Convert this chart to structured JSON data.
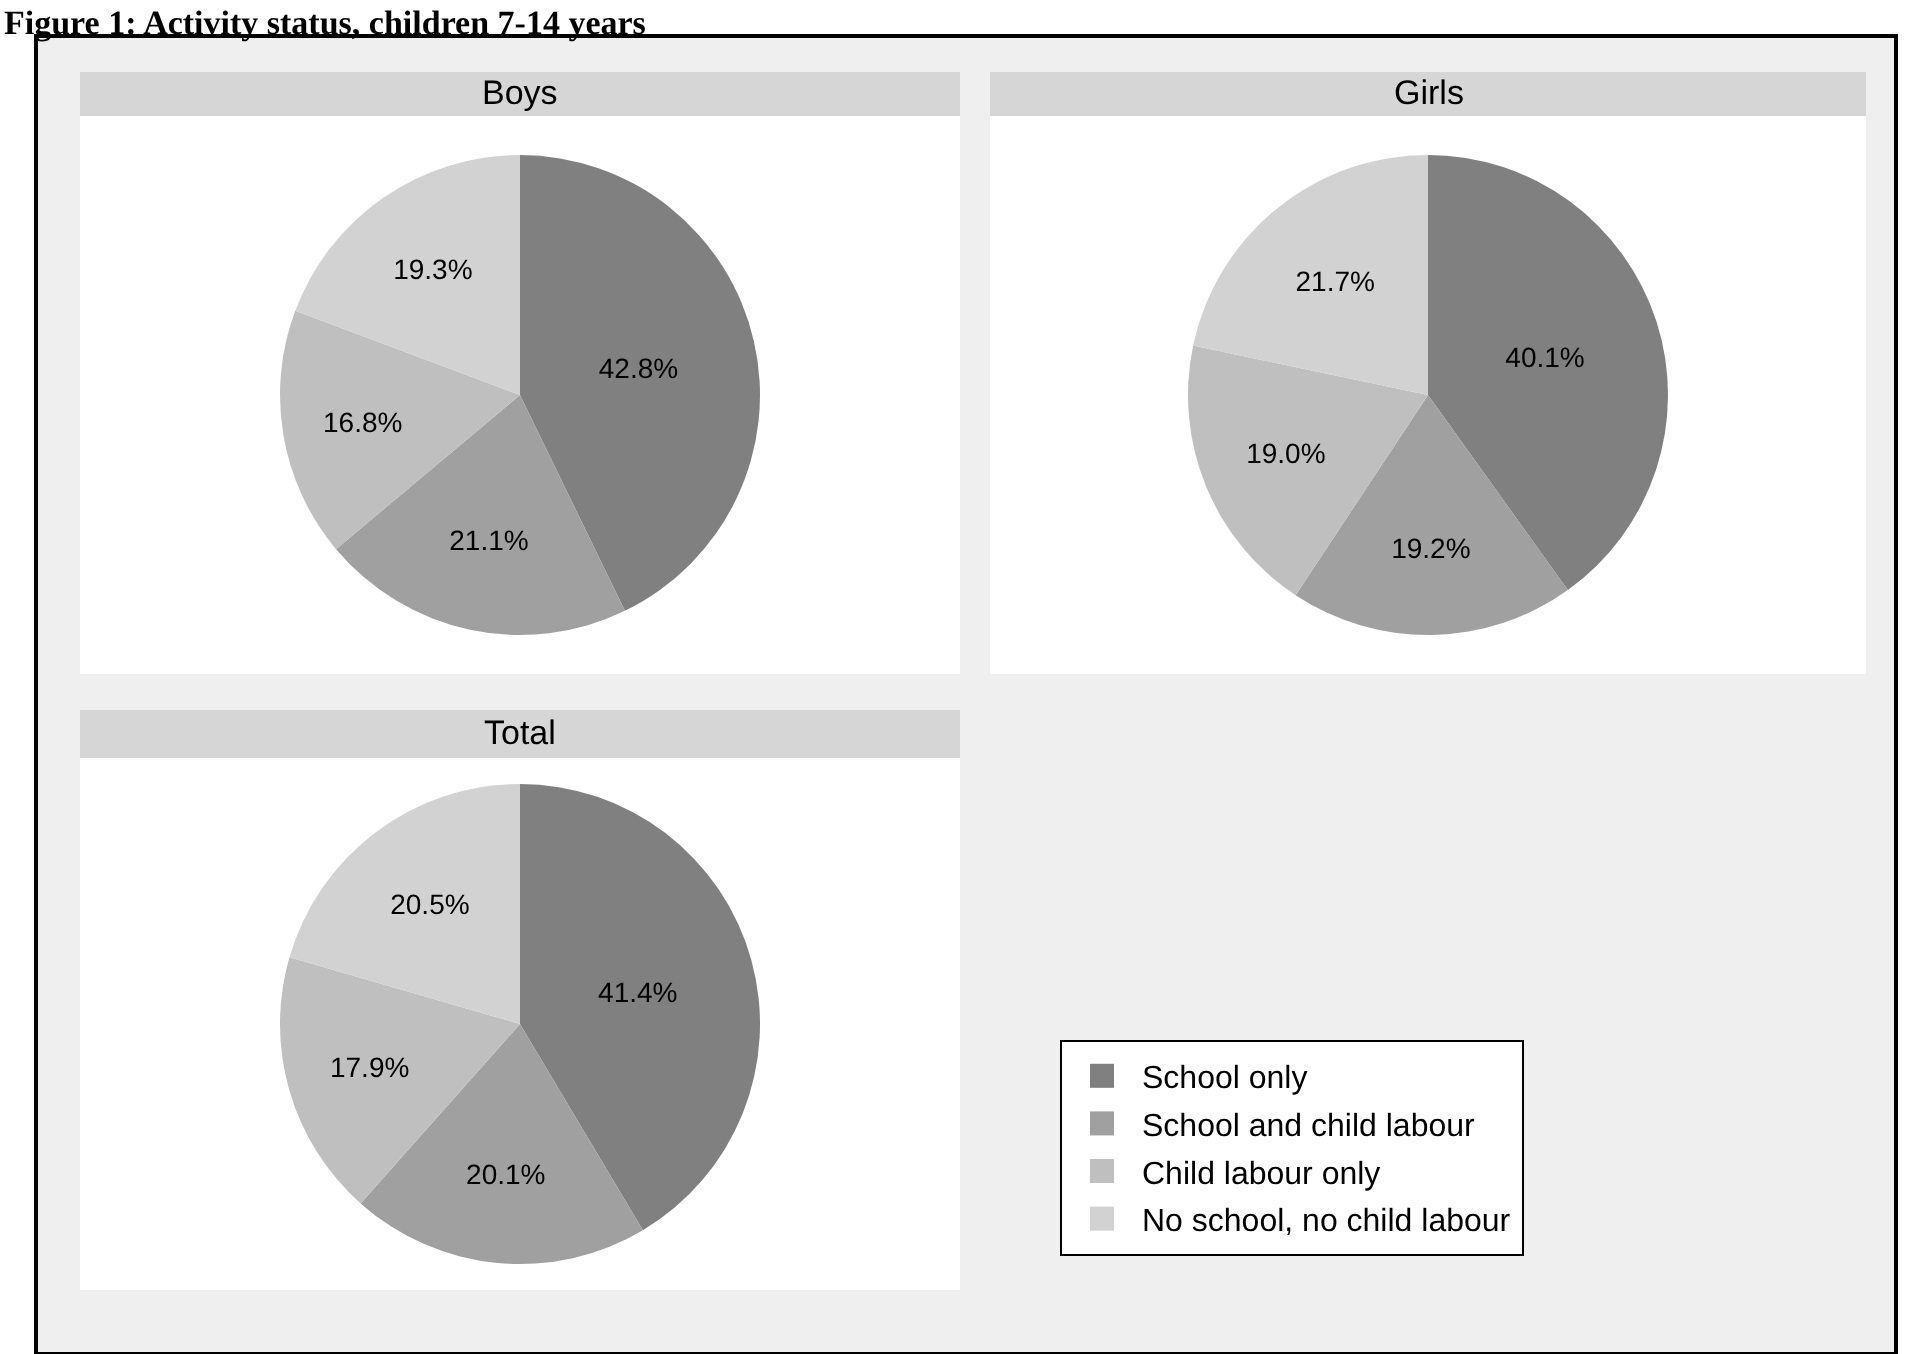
{
  "chart_data": [
    {
      "type": "pie",
      "title": "Boys",
      "categories": [
        "School only",
        "School and child labour",
        "Child labour only",
        "No school, no child labour"
      ],
      "values": [
        42.8,
        21.1,
        16.8,
        19.3
      ],
      "value_labels": [
        "42.8%",
        "21.1%",
        "16.8%",
        "19.3%"
      ],
      "colors": [
        "#808080",
        "#a0a0a0",
        "#bfbfbf",
        "#d2d2d2"
      ],
      "legend": "bottom right",
      "annotations": [
        "Figure 1: Activity status, children 7-14 years"
      ]
    },
    {
      "type": "pie",
      "title": "Girls",
      "values": [
        40.1,
        19.2,
        19.0,
        21.7
      ],
      "value_labels": [
        "40.1%",
        "19.2%",
        "19.0%",
        "21.7%"
      ],
      "colors": [
        "#808080",
        "#a0a0a0",
        "#bfbfbf",
        "#d2d2d2"
      ]
    },
    {
      "type": "pie",
      "title": "Total",
      "values": [
        41.4,
        20.1,
        17.9,
        20.5
      ],
      "value_labels": [
        "41.4%",
        "20.1%",
        "17.9%",
        "20.5%"
      ],
      "colors": [
        "#808080",
        "#a0a0a0",
        "#bfbfbf",
        "#d2d2d2"
      ]
    }
  ]
}
